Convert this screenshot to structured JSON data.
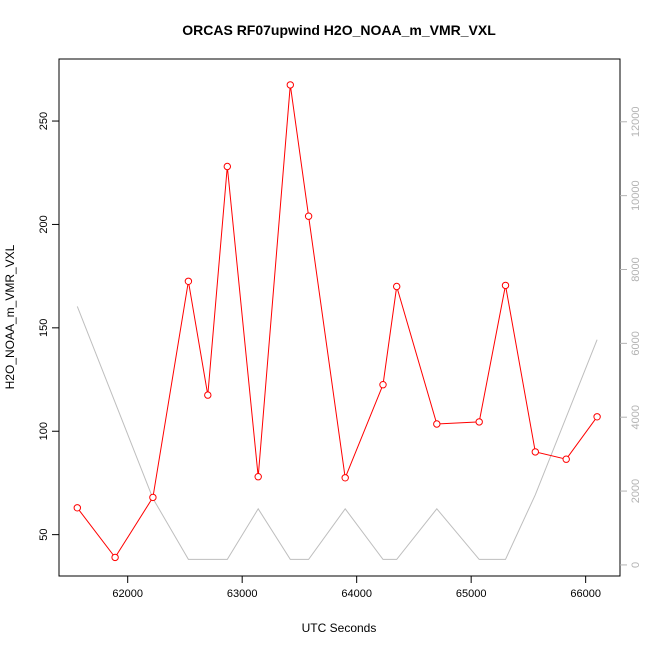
{
  "chart_data": {
    "type": "line",
    "title": "ORCAS RF07upwind H2O_NOAA_m_VMR_VXL",
    "xlabel": "UTC Seconds",
    "ylabel": "H2O_NOAA_m_VMR_VXL",
    "xlim": [
      61400,
      66300
    ],
    "ylim": [
      30,
      280
    ],
    "y2lim": [
      -300,
      13700
    ],
    "x_ticks": [
      62000,
      63000,
      64000,
      65000,
      66000
    ],
    "y_ticks": [
      50,
      100,
      150,
      200,
      250
    ],
    "y2_ticks": [
      0,
      2000,
      4000,
      6000,
      8000,
      10000,
      12000
    ],
    "grid": false,
    "series": [
      {
        "color": "#ff0000",
        "axis": "left",
        "marker": "circle",
        "x": [
          61560,
          61890,
          62220,
          62530,
          62700,
          62870,
          63140,
          63420,
          63580,
          63900,
          64230,
          64350,
          64700,
          65070,
          65300,
          65560,
          65830,
          66100
        ],
        "y": [
          63,
          39,
          68,
          172.5,
          117.5,
          228,
          78,
          267.5,
          204,
          77.5,
          122.5,
          170,
          103.5,
          104.5,
          170.5,
          90,
          86.5,
          107
        ]
      },
      {
        "color": "#bebebe",
        "axis": "right",
        "marker": "none",
        "x": [
          61560,
          62220,
          62530,
          62870,
          63140,
          63420,
          63580,
          63900,
          64230,
          64350,
          64700,
          65070,
          65300,
          65560,
          66100
        ],
        "y": [
          7000,
          1800,
          150,
          150,
          1520,
          150,
          150,
          1520,
          150,
          150,
          1520,
          150,
          150,
          1900,
          6100
        ]
      }
    ]
  }
}
